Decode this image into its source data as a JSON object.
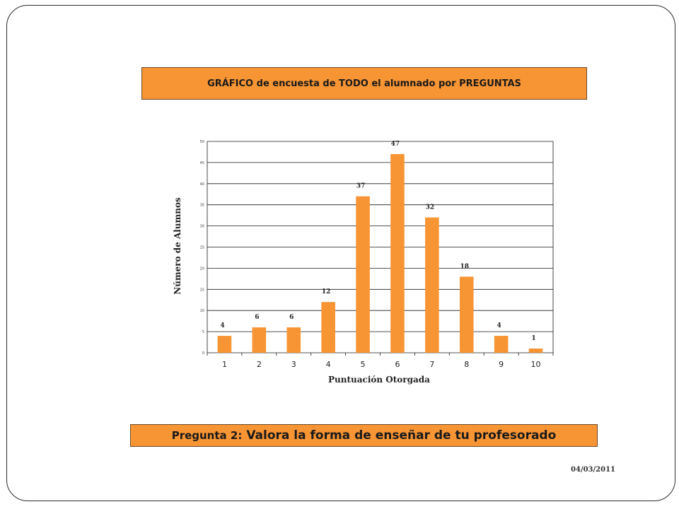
{
  "header": {
    "title": "GRÁFICO de encuesta de TODO  el alumnado por PREGUNTAS"
  },
  "question": {
    "prefix": "Pregunta 2:",
    "text": "Valora la forma de enseñar de tu profesorado"
  },
  "footer": {
    "date": "04/03/2011"
  },
  "colors": {
    "accent": "#f79433",
    "bar": "#f79433",
    "grid": "#1a1a1a"
  },
  "chart_data": {
    "type": "bar",
    "categories": [
      "1",
      "2",
      "3",
      "4",
      "5",
      "6",
      "7",
      "8",
      "9",
      "10"
    ],
    "values": [
      4,
      6,
      6,
      12,
      37,
      47,
      32,
      18,
      4,
      1
    ],
    "xlabel": "Puntuación Otorgada",
    "ylabel": "Número de Alumnos",
    "ylim": [
      0,
      50
    ],
    "yticks": [
      0,
      5,
      10,
      15,
      20,
      25,
      30,
      35,
      40,
      45,
      50
    ],
    "grid": true,
    "data_labels": true
  }
}
